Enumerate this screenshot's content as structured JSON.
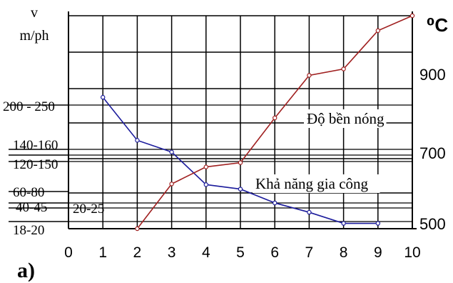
{
  "chart_data": {
    "type": "line",
    "panel_label": "a)",
    "left_axis": {
      "title_line1": "v",
      "title_line2": "m/ph",
      "tick_labels": [
        "200 - 250",
        "140-160",
        "120-150",
        "60-80",
        "40-45",
        "18-20"
      ]
    },
    "right_axis": {
      "title": "⁰C",
      "tick_labels": [
        "900",
        "700",
        "500"
      ],
      "ylim": [
        500,
        1000
      ]
    },
    "extra_label": "20-25",
    "x": [
      0,
      1,
      2,
      3,
      4,
      5,
      6,
      7,
      8,
      9,
      10
    ],
    "x_tick_labels": [
      "0",
      "1",
      "2",
      "3",
      "4",
      "5",
      "6",
      "7",
      "8",
      "9",
      "10"
    ],
    "xlim": [
      0,
      10
    ],
    "grid": true,
    "series": [
      {
        "name": "Khả năng gia công",
        "color": "#1c1c9c",
        "x": [
          1,
          2,
          3,
          4,
          5,
          6,
          7,
          8,
          9
        ],
        "y_relative": [
          0.617,
          0.415,
          0.36,
          0.207,
          0.186,
          0.121,
          0.077,
          0.025,
          0.025
        ]
      },
      {
        "name": "Độ bền nóng",
        "color": "#a02020",
        "x": [
          2,
          3,
          4,
          5,
          6,
          7,
          8,
          9,
          10
        ],
        "y": [
          500,
          605,
          645,
          655,
          760,
          860,
          875,
          965,
          1000
        ]
      }
    ]
  }
}
